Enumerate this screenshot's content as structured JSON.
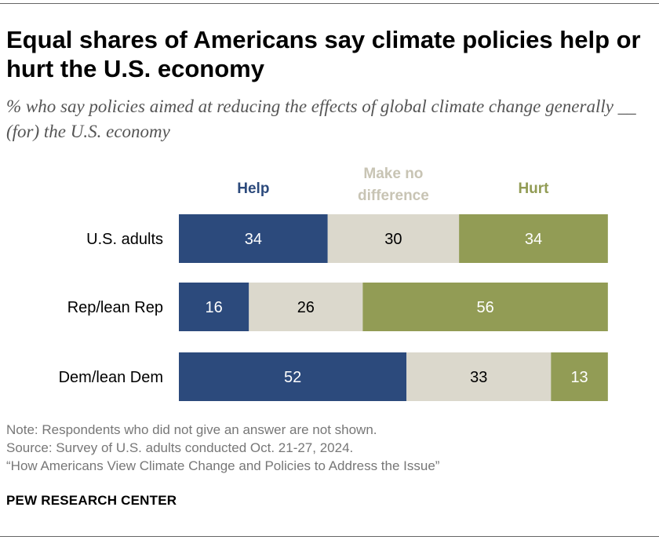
{
  "title": "Equal shares of Americans say climate policies help or hurt the U.S. economy",
  "subtitle": "% who say policies aimed at reducing the effects of global climate change generally __ (for) the U.S. economy",
  "note": "Note: Respondents who did not give an answer are not shown.",
  "source": "Source: Survey of U.S. adults conducted Oct. 21-27, 2024.",
  "report": "“How Americans View Climate Change and Policies to Address the Issue”",
  "brand": "PEW RESEARCH CENTER",
  "colors": {
    "help": "#2c4a7c",
    "no_difference": "#dbd8cc",
    "hurt": "#929c55",
    "no_difference_legend": "#c8c4b4"
  },
  "chart_data": {
    "type": "bar",
    "orientation": "horizontal",
    "stacked": true,
    "categories": [
      "U.S. adults",
      "Rep/lean Rep",
      "Dem/lean Dem"
    ],
    "series": [
      {
        "name": "Help",
        "values": [
          34,
          16,
          52
        ]
      },
      {
        "name": "Make no difference",
        "values": [
          30,
          26,
          33
        ]
      },
      {
        "name": "Hurt",
        "values": [
          34,
          56,
          13
        ]
      }
    ],
    "xlim": [
      0,
      100
    ],
    "grid": false,
    "legend_position": "top"
  }
}
